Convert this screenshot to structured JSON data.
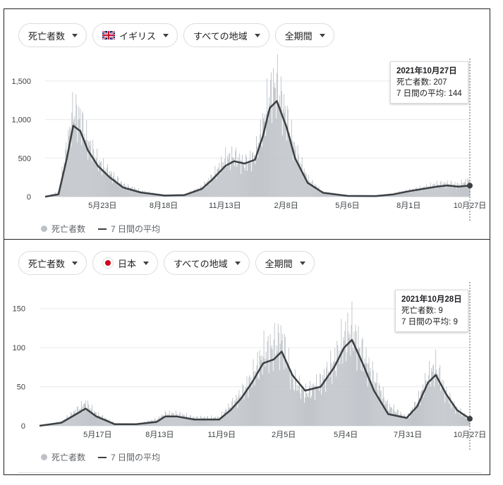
{
  "panels": [
    {
      "filters": {
        "metric": "死亡者数",
        "country": "イギリス",
        "region": "すべての地域",
        "period": "全期間"
      },
      "tooltip": {
        "date": "2021年10月27日",
        "deaths": "死亡者数: 207",
        "avg": "7 日間の平均: 144"
      },
      "legend": {
        "deaths": "死亡者数",
        "avg": "7 日間の平均"
      }
    },
    {
      "filters": {
        "metric": "死亡者数",
        "country": "日本",
        "region": "すべての地域",
        "period": "全期間"
      },
      "tooltip": {
        "date": "2021年10月28日",
        "deaths": "死亡者数: 9",
        "avg": "7 日間の平均: 9"
      },
      "legend": {
        "deaths": "死亡者数",
        "avg": "7 日間の平均"
      }
    }
  ],
  "colors": {
    "bars": "#bdc1c6",
    "line": "#3c4043",
    "grid": "#e8eaed",
    "jp_flag": "#d0021b"
  },
  "chart_data": [
    {
      "type": "bar",
      "title": "",
      "country": "イギリス",
      "x_range": [
        "2020-03-01",
        "2021-10-27"
      ],
      "ylim": [
        0,
        1700
      ],
      "yticks": [
        0,
        500,
        1000,
        1500
      ],
      "ytick_labels": [
        "0",
        "500",
        "1,000",
        "1,500"
      ],
      "xtick_labels": [
        "5月23日",
        "8月18日",
        "11月13日",
        "2月8日",
        "5月6日",
        "8月1日",
        "10月27日"
      ],
      "grid": true,
      "series": [
        {
          "name": "死亡者数",
          "kind": "bar",
          "x": [
            "2020-03-01",
            "2020-03-20",
            "2020-04-01",
            "2020-04-10",
            "2020-04-20",
            "2020-05-01",
            "2020-05-15",
            "2020-06-01",
            "2020-06-20",
            "2020-07-15",
            "2020-08-18",
            "2020-09-15",
            "2020-10-10",
            "2020-10-25",
            "2020-11-13",
            "2020-11-25",
            "2020-12-10",
            "2020-12-25",
            "2021-01-05",
            "2021-01-15",
            "2021-01-25",
            "2021-02-08",
            "2021-02-20",
            "2021-03-10",
            "2021-04-01",
            "2021-05-06",
            "2021-06-15",
            "2021-07-10",
            "2021-08-01",
            "2021-08-20",
            "2021-09-10",
            "2021-09-25",
            "2021-10-10",
            "2021-10-27"
          ],
          "values": [
            0,
            60,
            620,
            1100,
            1000,
            700,
            450,
            300,
            150,
            70,
            20,
            20,
            120,
            250,
            480,
            520,
            420,
            520,
            900,
            1300,
            1450,
            1000,
            600,
            220,
            60,
            10,
            8,
            40,
            80,
            110,
            160,
            170,
            150,
            207
          ]
        },
        {
          "name": "7 日間の平均",
          "kind": "line",
          "x": [
            "2020-03-01",
            "2020-03-20",
            "2020-04-01",
            "2020-04-10",
            "2020-04-20",
            "2020-05-01",
            "2020-05-15",
            "2020-06-01",
            "2020-06-20",
            "2020-07-15",
            "2020-08-18",
            "2020-09-15",
            "2020-10-10",
            "2020-10-25",
            "2020-11-13",
            "2020-11-25",
            "2020-12-10",
            "2020-12-25",
            "2021-01-05",
            "2021-01-15",
            "2021-01-25",
            "2021-02-08",
            "2021-02-20",
            "2021-03-10",
            "2021-04-01",
            "2021-05-06",
            "2021-06-15",
            "2021-07-10",
            "2021-08-01",
            "2021-08-20",
            "2021-09-10",
            "2021-09-25",
            "2021-10-10",
            "2021-10-27"
          ],
          "values": [
            0,
            30,
            500,
            920,
            850,
            600,
            400,
            250,
            120,
            55,
            15,
            20,
            100,
            220,
            400,
            460,
            430,
            480,
            780,
            1150,
            1240,
            900,
            500,
            180,
            50,
            10,
            8,
            30,
            70,
            100,
            130,
            145,
            130,
            144
          ]
        }
      ]
    },
    {
      "type": "bar",
      "title": "",
      "country": "日本",
      "x_range": [
        "2020-03-01",
        "2021-10-28"
      ],
      "ylim": [
        0,
        175
      ],
      "yticks": [
        0,
        50,
        100,
        150
      ],
      "ytick_labels": [
        "0",
        "50",
        "100",
        "150"
      ],
      "xtick_labels": [
        "5月17日",
        "8月13日",
        "11月9日",
        "2月5日",
        "5月4日",
        "7月31日",
        "10月27日"
      ],
      "grid": true,
      "series": [
        {
          "name": "死亡者数",
          "kind": "bar",
          "x": [
            "2020-03-01",
            "2020-04-01",
            "2020-04-20",
            "2020-05-05",
            "2020-05-20",
            "2020-06-15",
            "2020-07-15",
            "2020-08-13",
            "2020-08-25",
            "2020-09-10",
            "2020-10-05",
            "2020-11-09",
            "2020-11-25",
            "2020-12-10",
            "2020-12-25",
            "2021-01-10",
            "2021-01-25",
            "2021-02-05",
            "2021-02-20",
            "2021-03-10",
            "2021-04-01",
            "2021-04-20",
            "2021-05-04",
            "2021-05-15",
            "2021-05-30",
            "2021-06-15",
            "2021-07-05",
            "2021-07-31",
            "2021-08-15",
            "2021-08-30",
            "2021-09-10",
            "2021-09-25",
            "2021-10-10",
            "2021-10-28"
          ],
          "values": [
            0,
            5,
            18,
            28,
            15,
            3,
            2,
            8,
            15,
            15,
            10,
            10,
            25,
            40,
            60,
            90,
            100,
            110,
            60,
            40,
            55,
            80,
            110,
            120,
            90,
            60,
            25,
            10,
            30,
            60,
            75,
            40,
            20,
            9
          ]
        },
        {
          "name": "7 日間の平均",
          "kind": "line",
          "x": [
            "2020-03-01",
            "2020-04-01",
            "2020-04-20",
            "2020-05-05",
            "2020-05-20",
            "2020-06-15",
            "2020-07-15",
            "2020-08-13",
            "2020-08-25",
            "2020-09-10",
            "2020-10-05",
            "2020-11-09",
            "2020-11-25",
            "2020-12-10",
            "2020-12-25",
            "2021-01-10",
            "2021-01-25",
            "2021-02-05",
            "2021-02-20",
            "2021-03-10",
            "2021-04-01",
            "2021-04-20",
            "2021-05-04",
            "2021-05-15",
            "2021-05-30",
            "2021-06-15",
            "2021-07-05",
            "2021-07-31",
            "2021-08-15",
            "2021-08-30",
            "2021-09-10",
            "2021-09-25",
            "2021-10-10",
            "2021-10-28"
          ],
          "values": [
            0,
            4,
            14,
            22,
            12,
            2,
            2,
            5,
            12,
            12,
            8,
            8,
            20,
            35,
            55,
            80,
            85,
            95,
            65,
            45,
            50,
            75,
            100,
            110,
            80,
            45,
            15,
            10,
            25,
            55,
            65,
            40,
            20,
            9
          ]
        }
      ]
    }
  ]
}
